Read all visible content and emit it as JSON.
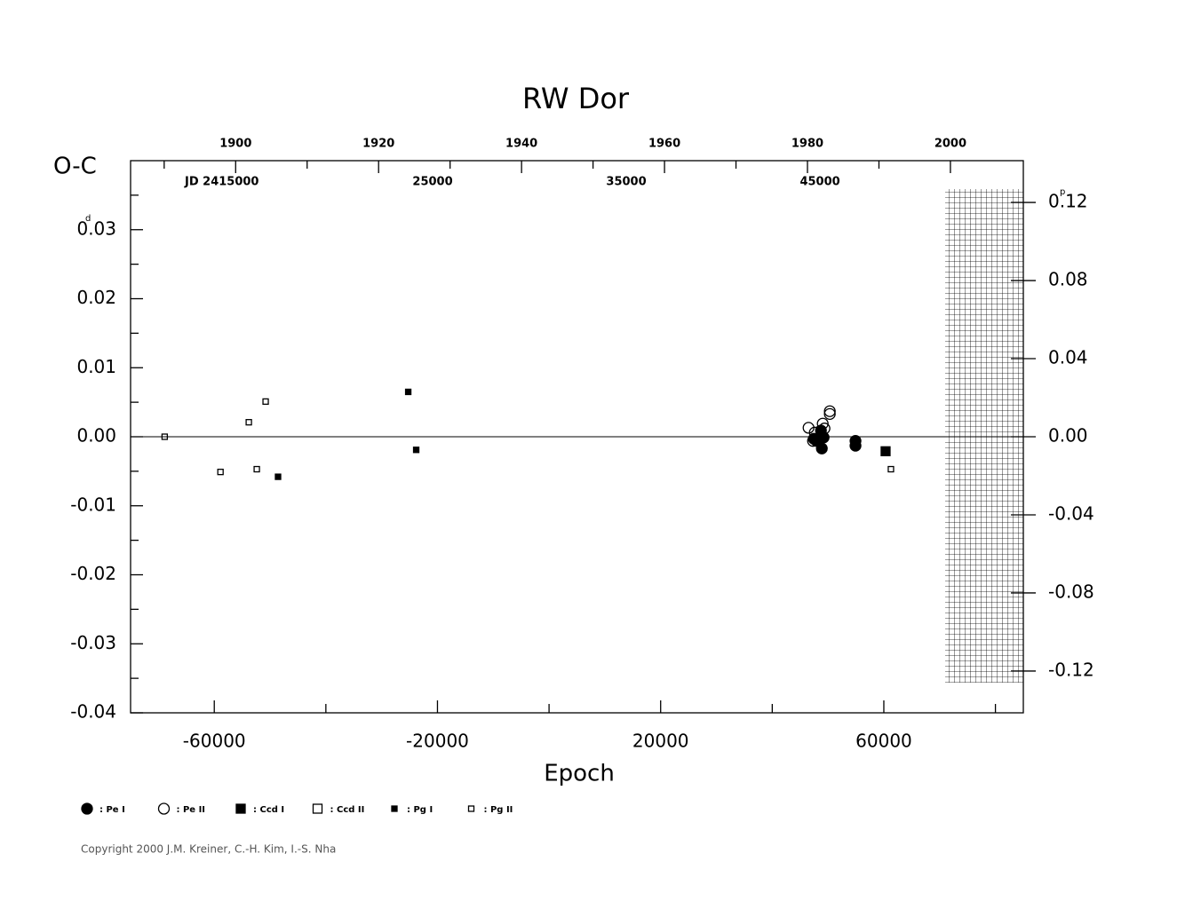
{
  "chart_data": {
    "type": "scatter",
    "title": "RW Dor",
    "x_label": "Epoch",
    "y_label": "O-C",
    "y_unit": "d",
    "y2_unit": "p",
    "jd_label": "JD 2415000",
    "copyright": "Copyright 2000 J.M. Kreiner, C.-H. Kim, I.-S. Nha",
    "xlim": [
      -75000,
      85000
    ],
    "xticks": [
      -60000,
      -20000,
      20000,
      60000
    ],
    "xticks_minor": [
      -40000,
      0,
      40000,
      80000
    ],
    "ylim": [
      -0.04,
      0.04
    ],
    "yticks": [
      -0.04,
      -0.03,
      -0.02,
      -0.01,
      {
        "value": 0,
        "label": "0.00"
      },
      0.01,
      0.02,
      0.03
    ],
    "yticks_minor": [
      -0.035,
      -0.025,
      -0.015,
      -0.005,
      0.005,
      0.015,
      0.025,
      0.035
    ],
    "y2lim": [
      -0.1414,
      0.1414
    ],
    "y2ticks": [
      -0.12,
      -0.08,
      -0.04,
      {
        "value": 0,
        "label": "0.00"
      },
      0.04,
      0.08,
      0.12
    ],
    "year_lim": [
      1885.3,
      2010.2
    ],
    "year_ticks": [
      1900,
      1920,
      1940,
      1960,
      1980,
      2000
    ],
    "year_ticks_minor": [
      1890,
      1910,
      1930,
      1950,
      1970,
      1990
    ],
    "jd_lim": [
      9404,
      55500
    ],
    "jd_ticks": [
      25000,
      35000,
      45000
    ],
    "zero_line": true,
    "series": [
      {
        "name": ": Pe I",
        "color": "#000000",
        "marker": "circle-filled",
        "x": [
          48889,
          47937,
          49206,
          48730,
          54921,
          54921,
          47460
        ],
        "values": [
          -0.0017,
          -0.0006,
          -0.0001,
          0.0009,
          -0.0006,
          -0.0013,
          -0.0003
        ]
      },
      {
        "name": ": Pe II",
        "color": "#000000",
        "marker": "circle-open",
        "x": [
          46508,
          47619,
          49048,
          50317,
          50317,
          47302,
          49365
        ],
        "values": [
          0.0013,
          0.0006,
          0.0019,
          0.0037,
          0.0033,
          -0.0006,
          0.0012
        ]
      },
      {
        "name": ": Ccd I",
        "color": "#000000",
        "marker": "square-filled",
        "x": [
          60317
        ],
        "values": [
          -0.0021
        ]
      },
      {
        "name": ": Ccd II",
        "color": "#000000",
        "marker": "square-open",
        "x": [],
        "values": []
      },
      {
        "name": ": Pg I",
        "color": "#000000",
        "marker": "small-filled",
        "x": [
          -48571,
          -25238,
          -23810
        ],
        "values": [
          -0.0058,
          0.0065,
          -0.0019
        ]
      },
      {
        "name": ": Pg II",
        "color": "#000000",
        "marker": "small-open",
        "x": [
          -68889,
          -58889,
          -53810,
          -52381,
          -50794,
          61270
        ],
        "values": [
          0,
          -0.0051,
          0.0021,
          -0.0047,
          0.0051,
          -0.0047
        ]
      }
    ]
  }
}
